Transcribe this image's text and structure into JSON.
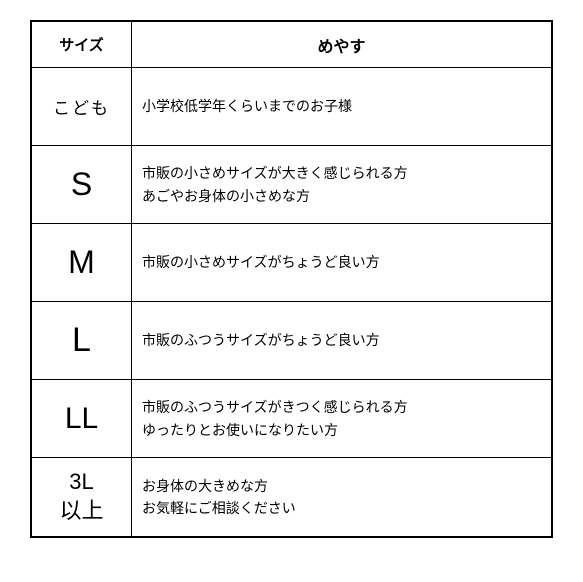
{
  "table": {
    "header": {
      "size_label": "サイズ",
      "desc_label": "めやす"
    },
    "rows": [
      {
        "size": "こども",
        "size_class": "size-kids",
        "desc_lines": [
          "小学校低学年くらいまでのお子様"
        ]
      },
      {
        "size": "S",
        "size_class": "size-s",
        "desc_lines": [
          "市販の小さめサイズが大きく感じられる方",
          "あごやお身体の小さめな方"
        ]
      },
      {
        "size": "M",
        "size_class": "size-m",
        "desc_lines": [
          "市販の小さめサイズがちょうど良い方"
        ]
      },
      {
        "size": "L",
        "size_class": "size-l",
        "desc_lines": [
          "市販のふつうサイズがちょうど良い方"
        ]
      },
      {
        "size": "LL",
        "size_class": "size-ll",
        "desc_lines": [
          "市販のふつうサイズがきつく感じられる方",
          "ゆったりとお使いになりたい方"
        ]
      },
      {
        "size": "3L\n以上",
        "size_class": "size-3l",
        "desc_lines": [
          "お身体の大きめな方",
          "お気軽にご相談ください"
        ]
      }
    ]
  }
}
